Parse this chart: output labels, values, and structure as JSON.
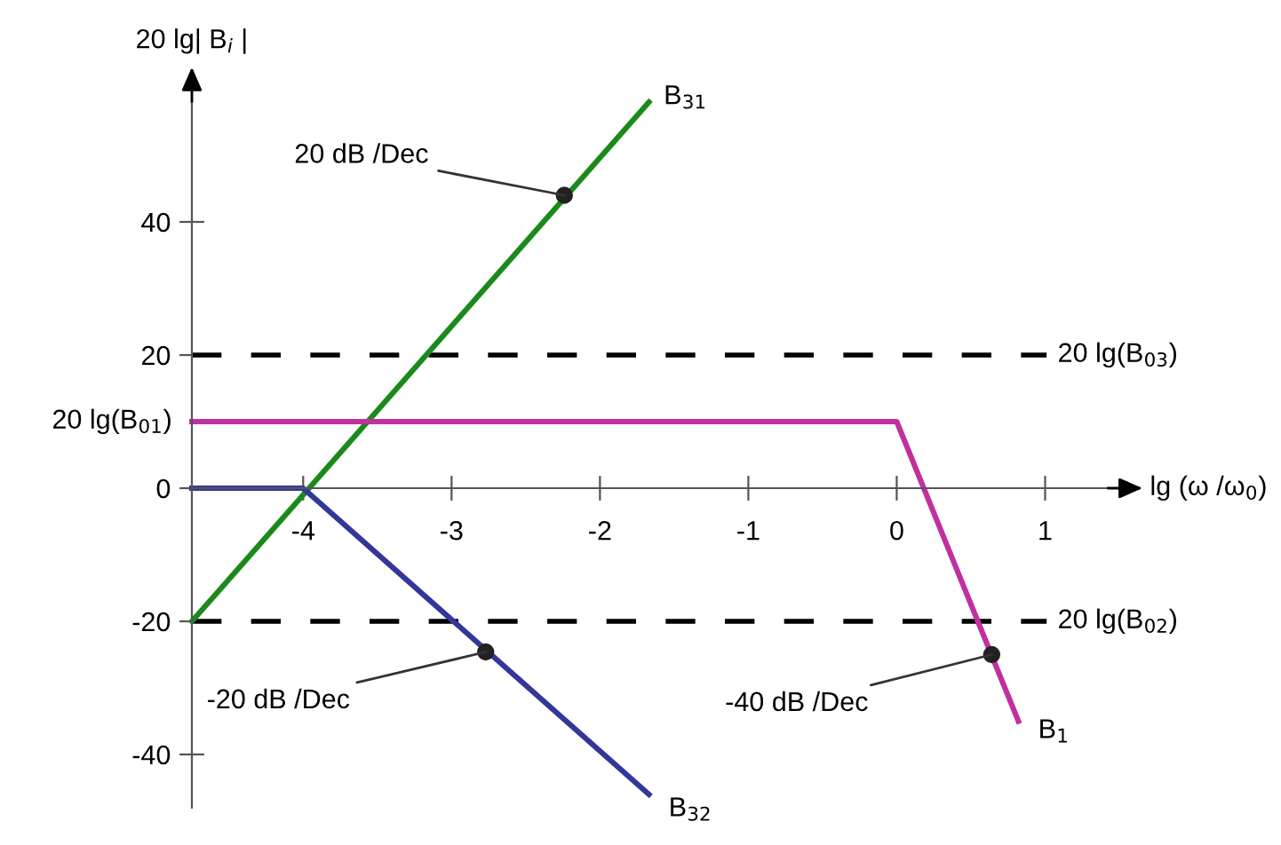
{
  "chart_data": {
    "type": "line",
    "xlabel": "lg (ω /ω$_{0}$)",
    "ylabel": "20 lg| B$_{i}$ |",
    "xlim": [
      -4.75,
      1.5
    ],
    "ylim": [
      -48,
      60
    ],
    "xticks": [
      -4,
      -3,
      -2,
      -1,
      0,
      1
    ],
    "yticks": [
      -40,
      -20,
      0,
      20,
      40
    ],
    "grid": false,
    "legend": false,
    "marker": "none",
    "line_style": "solid",
    "series": [
      {
        "name": "B$_{31}$",
        "color": "#1a8a1a",
        "x": [
          -4.75,
          -1.67
        ],
        "values": [
          -20,
          58
        ]
      },
      {
        "name": "B$_{1}$",
        "color": "#c0309f",
        "x": [
          -4.75,
          0,
          0.82
        ],
        "values": [
          10,
          10,
          -35
        ]
      },
      {
        "name": "B$_{32}$",
        "color": "#33379a",
        "x": [
          -4.75,
          -4,
          -1.67
        ],
        "values": [
          0,
          0,
          -46
        ]
      }
    ],
    "ref_lines": [
      {
        "axis": "y",
        "value": 20,
        "label": "20 lg(B$_{03}$)",
        "color": "#000000",
        "line_style": "dashed"
      },
      {
        "axis": "y",
        "value": -20,
        "label": "20 lg(B$_{02}$)",
        "color": "#000000",
        "line_style": "dashed"
      }
    ],
    "annotations": [
      {
        "text": "20 dB /Dec",
        "x": -2.24,
        "y": 44
      },
      {
        "text": "-20 dB /Dec",
        "x": -2.77,
        "y": -24.6
      },
      {
        "text": "-40 dB /Dec",
        "x": 0.64,
        "y": -25
      },
      {
        "text": "20 lg(B$_{01}$)",
        "x": -4.75,
        "y": 10
      }
    ]
  }
}
